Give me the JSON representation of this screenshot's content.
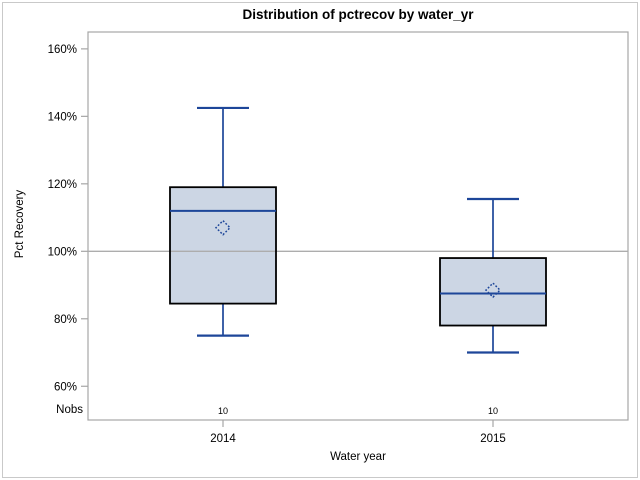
{
  "chart_data": {
    "type": "boxplot",
    "title": "Distribution of pctrecov by water_yr",
    "xlabel": "Water year",
    "ylabel": "Pct Recovery",
    "nobs_label": "Nobs",
    "categories": [
      "2014",
      "2015"
    ],
    "yticks": [
      60,
      80,
      100,
      120,
      140,
      160
    ],
    "ytick_labels": [
      "60%",
      "80%",
      "100%",
      "120%",
      "140%",
      "160%"
    ],
    "ylim": [
      50,
      165
    ],
    "reference_line": 100,
    "grid": false,
    "legend": "none",
    "series": [
      {
        "category": "2014",
        "min": 75,
        "q1": 84.5,
        "median": 112,
        "q3": 119,
        "max": 142.5,
        "mean": 107,
        "nobs": "10"
      },
      {
        "category": "2015",
        "min": 70,
        "q1": 78,
        "median": 87.5,
        "q3": 98,
        "max": 115.5,
        "mean": 88.5,
        "nobs": "10"
      }
    ],
    "colors": {
      "box_fill": "#ccd6e4",
      "box_border": "#000000",
      "line_blue": "#1d4699",
      "frame_gray": "#a6a6a6",
      "ref_line_gray": "#adadad",
      "text": "#000000"
    }
  }
}
